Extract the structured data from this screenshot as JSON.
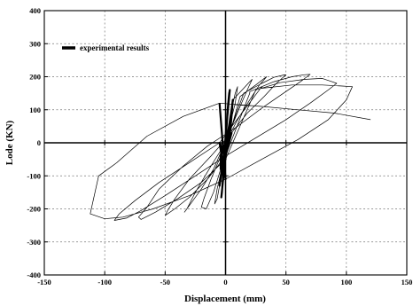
{
  "chart_data": {
    "type": "line",
    "title": "",
    "xlabel": "Displacement (mm)",
    "ylabel": "Lode (KN)",
    "xlim": [
      -150,
      150
    ],
    "ylim": [
      -400,
      400
    ],
    "x_ticks": [
      "-150",
      "-100",
      "-50",
      "0",
      "50",
      "100",
      "150"
    ],
    "y_ticks": [
      "400",
      "300",
      "200",
      "100",
      "0",
      "-100",
      "-200",
      "-300",
      "-400"
    ],
    "grid": true,
    "legend_position": "top-left",
    "series": [
      {
        "name": "experimental results",
        "x": [
          0,
          1,
          2,
          3,
          3.5,
          2,
          0,
          -1,
          -2,
          -3,
          -3.5,
          -2,
          0,
          0,
          5,
          8,
          10,
          8,
          2,
          -2,
          -5,
          -7,
          -9,
          -7,
          -2,
          3,
          6,
          6,
          15,
          20,
          22,
          18,
          12,
          4,
          -4,
          -12,
          -18,
          -20,
          -16,
          -10,
          -4,
          3,
          12,
          12,
          25,
          32,
          34,
          28,
          20,
          10,
          0,
          -12,
          -25,
          -32,
          -34,
          -28,
          -20,
          -10,
          2,
          15,
          15,
          30,
          40,
          48,
          50,
          42,
          32,
          18,
          5,
          -12,
          -30,
          -42,
          -48,
          -50,
          -42,
          -30,
          -15,
          0,
          20,
          20,
          40,
          55,
          65,
          70,
          62,
          48,
          30,
          10,
          -15,
          -35,
          -55,
          -65,
          -72,
          -70,
          -58,
          -40,
          -20,
          0,
          25,
          25,
          45,
          65,
          80,
          88,
          92,
          85,
          70,
          50,
          25,
          0,
          -25,
          -50,
          -70,
          -82,
          -92,
          -88,
          -75,
          -55,
          -30,
          -5,
          30,
          30,
          55,
          80,
          95,
          105,
          100,
          85,
          60,
          30,
          0,
          -30,
          -60,
          -85,
          -100,
          -112,
          -105,
          -90,
          -65,
          -35,
          -5,
          30,
          60,
          90,
          120
        ],
        "y": [
          0,
          60,
          110,
          150,
          160,
          100,
          20,
          -40,
          -100,
          -150,
          -165,
          -110,
          -20,
          -20,
          100,
          150,
          170,
          120,
          30,
          -50,
          -130,
          -170,
          -185,
          -140,
          -60,
          40,
          130,
          130,
          165,
          185,
          192,
          160,
          110,
          40,
          -40,
          -110,
          -170,
          -195,
          -200,
          -150,
          -80,
          20,
          140,
          140,
          175,
          195,
          200,
          175,
          130,
          70,
          0,
          -70,
          -150,
          -200,
          -210,
          -180,
          -140,
          -80,
          20,
          150,
          150,
          180,
          198,
          205,
          206,
          180,
          140,
          90,
          30,
          -40,
          -110,
          -170,
          -205,
          -220,
          -200,
          -165,
          -110,
          -40,
          150,
          155,
          185,
          200,
          206,
          207,
          185,
          150,
          105,
          50,
          -10,
          -70,
          -140,
          -195,
          -225,
          -232,
          -210,
          -170,
          -120,
          -50,
          160,
          160,
          182,
          192,
          195,
          185,
          180,
          160,
          120,
          70,
          15,
          -40,
          -100,
          -160,
          -205,
          -228,
          -235,
          -215,
          -175,
          -120,
          -60,
          0,
          170,
          165,
          175,
          175,
          172,
          170,
          130,
          70,
          10,
          -50,
          -110,
          -160,
          -200,
          -225,
          -230,
          -215,
          -100,
          -60,
          20,
          80,
          120,
          110,
          100,
          90,
          70
        ]
      }
    ]
  }
}
